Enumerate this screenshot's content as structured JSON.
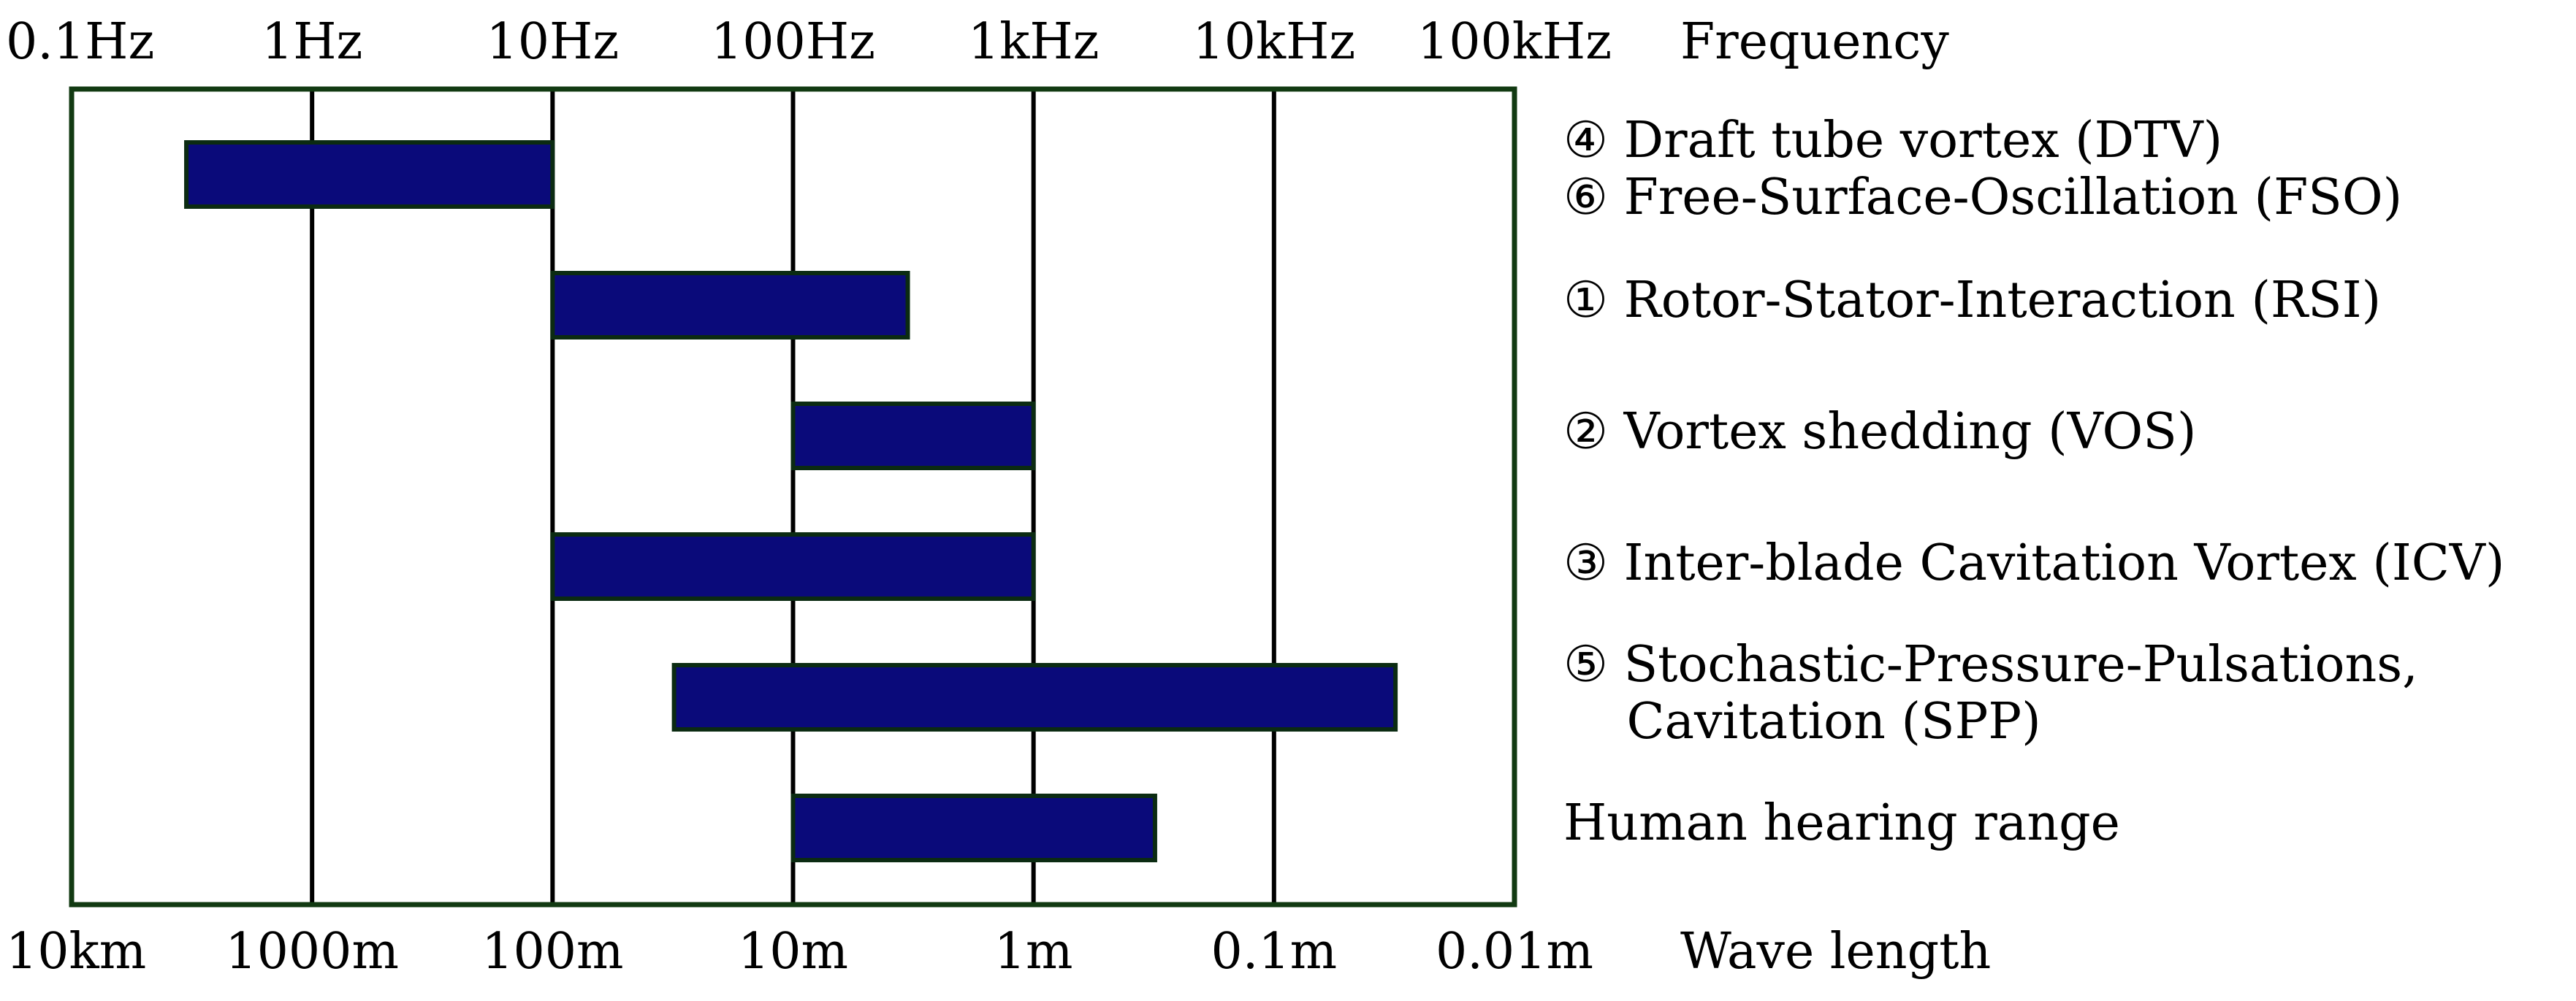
{
  "chart_data": {
    "type": "bar",
    "orientation": "horizontal-range",
    "x_scale": "log",
    "x_range_hz": [
      0.1,
      100000
    ],
    "grid": "vertical",
    "top_axis": {
      "title": "Frequency",
      "ticks": [
        {
          "value": 0.1,
          "label": "0.1Hz"
        },
        {
          "value": 1,
          "label": "1Hz"
        },
        {
          "value": 10,
          "label": "10Hz"
        },
        {
          "value": 100,
          "label": "100Hz"
        },
        {
          "value": 1000,
          "label": "1kHz"
        },
        {
          "value": 10000,
          "label": "10kHz"
        },
        {
          "value": 100000,
          "label": "100kHz"
        }
      ]
    },
    "bottom_axis": {
      "title": "Wave length",
      "ticks": [
        {
          "value": 0.1,
          "label": "10km"
        },
        {
          "value": 1,
          "label": "1000m"
        },
        {
          "value": 10,
          "label": "100m"
        },
        {
          "value": 100,
          "label": "10m"
        },
        {
          "value": 1000,
          "label": "1m"
        },
        {
          "value": 10000,
          "label": "0.1m"
        },
        {
          "value": 100000,
          "label": "0.01m"
        }
      ]
    },
    "bars": [
      {
        "min_hz": 0.3,
        "max_hz": 10
      },
      {
        "min_hz": 10,
        "max_hz": 300
      },
      {
        "min_hz": 100,
        "max_hz": 1000
      },
      {
        "min_hz": 10,
        "max_hz": 1000
      },
      {
        "min_hz": 32,
        "max_hz": 32000
      },
      {
        "min_hz": 100,
        "max_hz": 3200
      }
    ],
    "labels": [
      [
        "④ Draft tube vortex (DTV)",
        "⑥ Free-Surface-Oscillation (FSO)"
      ],
      [
        "① Rotor-Stator-Interaction (RSI)"
      ],
      [
        "② Vortex shedding (VOS)"
      ],
      [
        "③ Inter-blade Cavitation Vortex (ICV)"
      ],
      [
        "⑤ Stochastic-Pressure-Pulsations,",
        "    Cavitation (SPP)"
      ],
      [
        "Human hearing range"
      ]
    ],
    "colors": {
      "bar_fill": "#0a0a7a",
      "bar_stroke": "#0b2b12",
      "frame": "#123a12",
      "grid": "#000000"
    }
  }
}
